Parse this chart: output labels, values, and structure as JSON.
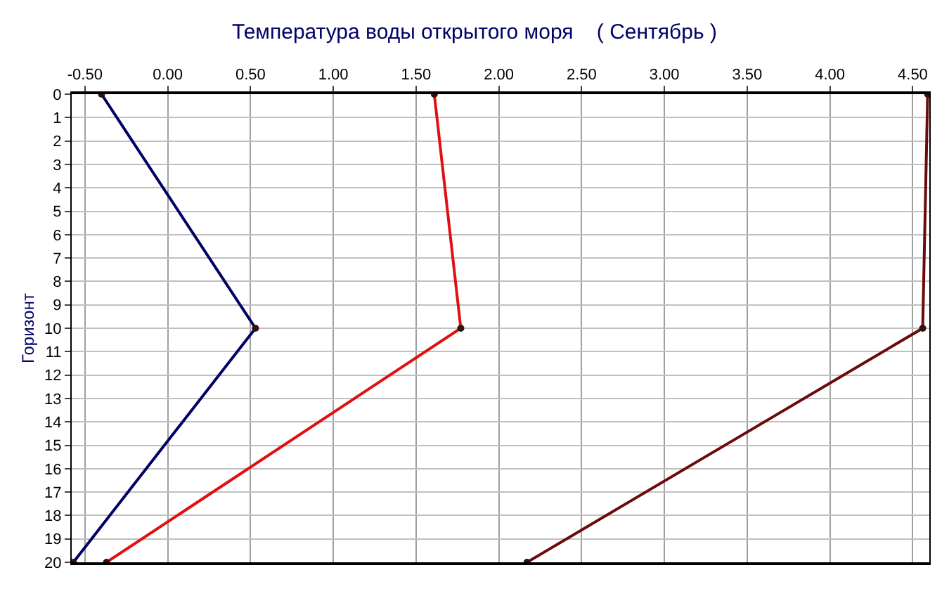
{
  "chart_data": {
    "type": "line",
    "title": "Температура воды открытого моря    ( Сентябрь )",
    "ylabel": "Горизонт",
    "xlim": [
      -0.58,
      4.6
    ],
    "xticks": [
      {
        "value": -0.5,
        "label": "-0.50"
      },
      {
        "value": 0,
        "label": "0.00"
      },
      {
        "value": 0.5,
        "label": "0.50"
      },
      {
        "value": 1,
        "label": "1.00"
      },
      {
        "value": 1.5,
        "label": "1.50"
      },
      {
        "value": 2,
        "label": "2.00"
      },
      {
        "value": 2.5,
        "label": "2.50"
      },
      {
        "value": 3,
        "label": "3.00"
      },
      {
        "value": 3.5,
        "label": "3.50"
      },
      {
        "value": 4,
        "label": "4.00"
      },
      {
        "value": 4.5,
        "label": "4.50"
      }
    ],
    "ylim": [
      20,
      0
    ],
    "yticks": [
      0,
      1,
      2,
      3,
      4,
      5,
      6,
      7,
      8,
      9,
      10,
      11,
      12,
      13,
      14,
      15,
      16,
      17,
      18,
      19,
      20
    ],
    "grid": true,
    "marker": "circle",
    "line_style": "solid",
    "series": [
      {
        "color": "#000066",
        "x": [
          -0.4,
          0.53,
          -0.57
        ],
        "values": [
          0,
          10,
          20
        ]
      },
      {
        "color": "#e01010",
        "x": [
          1.61,
          1.77,
          -0.37
        ],
        "values": [
          0,
          10,
          20
        ]
      },
      {
        "color": "#6b0a0a",
        "x": [
          4.59,
          4.56,
          2.17
        ],
        "values": [
          0,
          10,
          20
        ]
      }
    ]
  }
}
